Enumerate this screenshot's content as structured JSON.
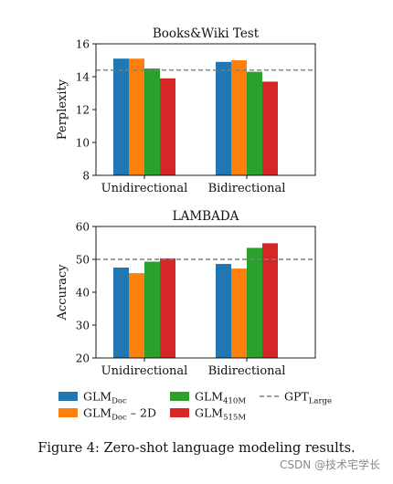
{
  "chart_data": [
    {
      "type": "bar",
      "title": "Books&Wiki Test",
      "ylabel": "Perplexity",
      "xlabel": "",
      "ylim": [
        8,
        16
      ],
      "yticks": [
        "8",
        "10",
        "12",
        "14",
        "16"
      ],
      "categories": [
        "Unidirectional",
        "Bidirectional"
      ],
      "series": [
        {
          "name": "GLM_Doc",
          "values": [
            15.1,
            14.9
          ]
        },
        {
          "name": "GLM_Doc – 2D",
          "values": [
            15.1,
            15.0
          ]
        },
        {
          "name": "GLM_410M",
          "values": [
            14.5,
            14.3
          ]
        },
        {
          "name": "GLM_515M",
          "values": [
            13.9,
            13.7
          ]
        }
      ],
      "reference_line": {
        "name": "GPT_Large",
        "value": 14.4
      }
    },
    {
      "type": "bar",
      "title": "LAMBADA",
      "ylabel": "Accuracy",
      "xlabel": "",
      "ylim": [
        20,
        60
      ],
      "yticks": [
        "20",
        "30",
        "40",
        "50",
        "60"
      ],
      "categories": [
        "Unidirectional",
        "Bidirectional"
      ],
      "series": [
        {
          "name": "GLM_Doc",
          "values": [
            47.5,
            48.6
          ]
        },
        {
          "name": "GLM_Doc – 2D",
          "values": [
            45.8,
            47.2
          ]
        },
        {
          "name": "GLM_410M",
          "values": [
            49.3,
            53.5
          ]
        },
        {
          "name": "GLM_515M",
          "values": [
            50.3,
            54.9
          ]
        }
      ],
      "reference_line": {
        "name": "GPT_Large",
        "value": 50.0
      }
    }
  ],
  "legend": {
    "items": [
      {
        "base": "GLM",
        "sub": "Doc",
        "suffix": "",
        "color": "#1f77b4",
        "style": "patch"
      },
      {
        "base": "GLM",
        "sub": "Doc",
        "suffix": " – 2D",
        "color": "#ff7f0e",
        "style": "patch"
      },
      {
        "base": "GLM",
        "sub": "410M",
        "suffix": "",
        "color": "#2ca02c",
        "style": "patch"
      },
      {
        "base": "GLM",
        "sub": "515M",
        "suffix": "",
        "color": "#d62728",
        "style": "patch"
      },
      {
        "base": "GPT",
        "sub": "Large",
        "suffix": "",
        "color": "#7f7f7f",
        "style": "dashed-line"
      }
    ]
  },
  "series_colors": [
    "#1f77b4",
    "#ff7f0e",
    "#2ca02c",
    "#d62728"
  ],
  "reference_color": "#7f7f7f",
  "caption": "Figure 4: Zero-shot language modeling results.",
  "watermark": "CSDN @技术宅学长"
}
